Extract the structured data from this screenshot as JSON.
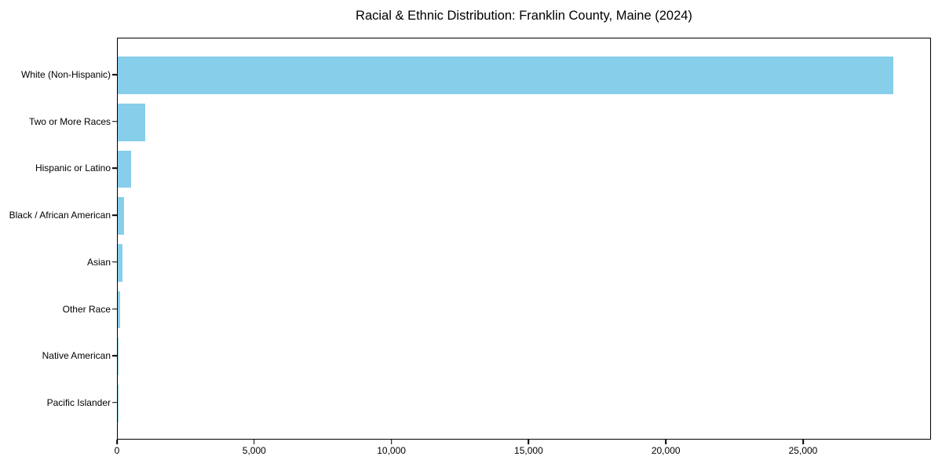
{
  "title": "Racial & Ethnic Distribution: Franklin County, Maine (2024)",
  "colors": {
    "bar": "#87CEEB",
    "axis": "#000000",
    "background": "#FFFFFF",
    "text": "#000000"
  },
  "chart_data": {
    "type": "bar",
    "orientation": "horizontal",
    "title": "Racial & Ethnic Distribution: Franklin County, Maine (2024)",
    "categories": [
      "White (Non-Hispanic)",
      "Two or More Races",
      "Hispanic or Latino",
      "Black / African American",
      "Asian",
      "Other Race",
      "Native American",
      "Pacific Islander"
    ],
    "values": [
      28250,
      1000,
      480,
      240,
      185,
      90,
      40,
      5
    ],
    "xlabel": "",
    "ylabel": "",
    "xlim": [
      0,
      29663
    ],
    "x_ticks": [
      0,
      5000,
      10000,
      15000,
      20000,
      25000
    ],
    "x_tick_labels": [
      "0",
      "5,000",
      "10,000",
      "15,000",
      "20,000",
      "25,000"
    ],
    "bar_color": "#87CEEB",
    "grid": false,
    "legend": null,
    "largest_bar_on_top": true
  }
}
